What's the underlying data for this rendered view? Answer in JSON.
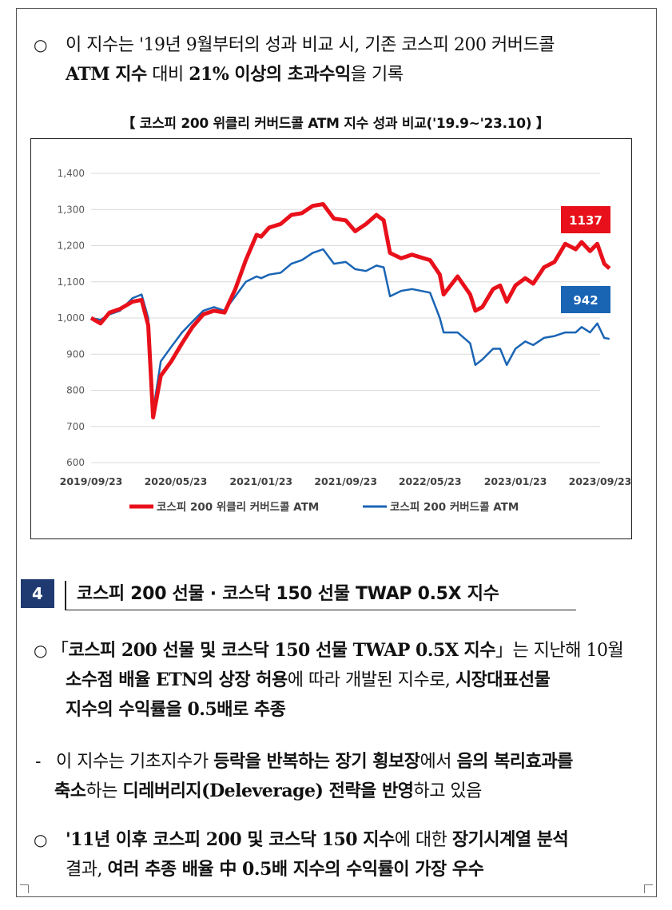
{
  "para1": {
    "bullet": "○",
    "line1": "이 지수는 '19년 9월부터의 성과 비교 시, 기존 코스피 200 커버드콜",
    "line2_bold": "ATM 지수",
    "line2_normal": " 대비 ",
    "line2_bold2": "21% 이상의 초과수익",
    "line2_end": "을 기록"
  },
  "chart_title": "【 코스피 200 위클리 커버드콜 ATM 지수 성과 비교('19.9~'23.10) 】",
  "chart_data": {
    "type": "line",
    "title": "",
    "xlabel": "",
    "ylabel": "",
    "ylim": [
      600,
      1400
    ],
    "yticks": [
      600,
      700,
      800,
      900,
      1000,
      1100,
      1200,
      1300,
      1400
    ],
    "ytick_labels": [
      "600",
      "700",
      "800",
      "900",
      "1,000",
      "1,100",
      "1,200",
      "1,300",
      "1,400"
    ],
    "x_tick_labels": [
      "2019/09/23",
      "2020/05/23",
      "2021/01/23",
      "2021/09/23",
      "2022/05/23",
      "2023/01/23",
      "2023/09/23"
    ],
    "x_ticks": [
      "2019-09-23",
      "2020-05-23",
      "2021-01-23",
      "2021-09-23",
      "2022-05-23",
      "2023-01-23",
      "2023-09-23"
    ],
    "grid": true,
    "legend_position": "bottom",
    "series": [
      {
        "name": "코스피 200 위클리 커버드콜 ATM",
        "color": "#e8101a",
        "end_label": "1137",
        "points": [
          [
            "2019-09-23",
            1000
          ],
          [
            "2019-10-20",
            985
          ],
          [
            "2019-11-15",
            1015
          ],
          [
            "2019-12-15",
            1025
          ],
          [
            "2020-01-20",
            1045
          ],
          [
            "2020-02-15",
            1050
          ],
          [
            "2020-03-05",
            980
          ],
          [
            "2020-03-19",
            725
          ],
          [
            "2020-04-10",
            840
          ],
          [
            "2020-05-10",
            880
          ],
          [
            "2020-06-10",
            930
          ],
          [
            "2020-07-10",
            975
          ],
          [
            "2020-08-10",
            1010
          ],
          [
            "2020-09-10",
            1020
          ],
          [
            "2020-10-10",
            1015
          ],
          [
            "2020-11-10",
            1080
          ],
          [
            "2020-12-10",
            1160
          ],
          [
            "2021-01-10",
            1230
          ],
          [
            "2021-01-23",
            1225
          ],
          [
            "2021-02-15",
            1250
          ],
          [
            "2021-03-20",
            1260
          ],
          [
            "2021-04-20",
            1285
          ],
          [
            "2021-05-20",
            1290
          ],
          [
            "2021-06-20",
            1310
          ],
          [
            "2021-07-20",
            1315
          ],
          [
            "2021-08-20",
            1275
          ],
          [
            "2021-09-23",
            1270
          ],
          [
            "2021-10-20",
            1240
          ],
          [
            "2021-11-20",
            1260
          ],
          [
            "2021-12-20",
            1285
          ],
          [
            "2022-01-10",
            1270
          ],
          [
            "2022-01-28",
            1180
          ],
          [
            "2022-03-01",
            1165
          ],
          [
            "2022-04-01",
            1175
          ],
          [
            "2022-05-23",
            1160
          ],
          [
            "2022-06-20",
            1120
          ],
          [
            "2022-07-01",
            1065
          ],
          [
            "2022-08-10",
            1115
          ],
          [
            "2022-09-15",
            1065
          ],
          [
            "2022-09-30",
            1020
          ],
          [
            "2022-10-20",
            1030
          ],
          [
            "2022-11-20",
            1080
          ],
          [
            "2022-12-10",
            1090
          ],
          [
            "2022-12-29",
            1045
          ],
          [
            "2023-01-23",
            1090
          ],
          [
            "2023-02-20",
            1110
          ],
          [
            "2023-03-15",
            1095
          ],
          [
            "2023-04-15",
            1140
          ],
          [
            "2023-05-15",
            1155
          ],
          [
            "2023-06-15",
            1205
          ],
          [
            "2023-07-15",
            1190
          ],
          [
            "2023-08-01",
            1210
          ],
          [
            "2023-08-25",
            1185
          ],
          [
            "2023-09-15",
            1205
          ],
          [
            "2023-10-05",
            1150
          ],
          [
            "2023-10-20",
            1137
          ]
        ]
      },
      {
        "name": "코스피 200 커버드콜 ATM",
        "color": "#1a64b4",
        "end_label": "942",
        "points": [
          [
            "2019-09-23",
            1000
          ],
          [
            "2019-10-20",
            995
          ],
          [
            "2019-11-15",
            1010
          ],
          [
            "2019-12-15",
            1020
          ],
          [
            "2020-01-20",
            1055
          ],
          [
            "2020-02-15",
            1065
          ],
          [
            "2020-03-05",
            1000
          ],
          [
            "2020-03-19",
            740
          ],
          [
            "2020-04-10",
            880
          ],
          [
            "2020-05-10",
            920
          ],
          [
            "2020-06-10",
            960
          ],
          [
            "2020-07-10",
            990
          ],
          [
            "2020-08-10",
            1020
          ],
          [
            "2020-09-10",
            1030
          ],
          [
            "2020-10-10",
            1020
          ],
          [
            "2020-11-10",
            1060
          ],
          [
            "2020-12-10",
            1100
          ],
          [
            "2021-01-10",
            1115
          ],
          [
            "2021-01-23",
            1110
          ],
          [
            "2021-02-15",
            1120
          ],
          [
            "2021-03-20",
            1125
          ],
          [
            "2021-04-20",
            1150
          ],
          [
            "2021-05-20",
            1160
          ],
          [
            "2021-06-20",
            1180
          ],
          [
            "2021-07-20",
            1190
          ],
          [
            "2021-08-20",
            1150
          ],
          [
            "2021-09-23",
            1155
          ],
          [
            "2021-10-20",
            1135
          ],
          [
            "2021-11-20",
            1130
          ],
          [
            "2021-12-20",
            1145
          ],
          [
            "2022-01-10",
            1140
          ],
          [
            "2022-01-28",
            1060
          ],
          [
            "2022-03-01",
            1075
          ],
          [
            "2022-04-01",
            1080
          ],
          [
            "2022-05-23",
            1070
          ],
          [
            "2022-06-20",
            1000
          ],
          [
            "2022-07-01",
            960
          ],
          [
            "2022-08-10",
            960
          ],
          [
            "2022-09-15",
            930
          ],
          [
            "2022-09-30",
            870
          ],
          [
            "2022-10-20",
            885
          ],
          [
            "2022-11-20",
            915
          ],
          [
            "2022-12-10",
            915
          ],
          [
            "2022-12-29",
            870
          ],
          [
            "2023-01-23",
            915
          ],
          [
            "2023-02-20",
            935
          ],
          [
            "2023-03-15",
            925
          ],
          [
            "2023-04-15",
            945
          ],
          [
            "2023-05-15",
            950
          ],
          [
            "2023-06-15",
            960
          ],
          [
            "2023-07-15",
            960
          ],
          [
            "2023-08-01",
            975
          ],
          [
            "2023-08-25",
            960
          ],
          [
            "2023-09-15",
            985
          ],
          [
            "2023-10-05",
            945
          ],
          [
            "2023-10-20",
            942
          ]
        ]
      }
    ]
  },
  "section": {
    "number": "4",
    "title": "코스피 200 선물 · 코스닥 150 선물 TWAP 0.5X 지수"
  },
  "para2": {
    "bullet": "○",
    "l1_a": "「",
    "l1_b": "코스피 200 선물 및 코스닥 150 선물 TWAP 0.5X 지수",
    "l1_c": "」는 지난해 10월",
    "l2_a": "소수점 배율 ETN의 상장 허용",
    "l2_b": "에 따라 개발된 지수로, ",
    "l2_c": "시장대표선물",
    "l3_a": "지수의 수익률을 0.5배로 추종"
  },
  "para3": {
    "dash": "-",
    "l1_a": "이 지수는 기초지수가 ",
    "l1_b": "등락을 반복하는 장기 횡보장",
    "l1_c": "에서 ",
    "l1_d": "음의 복리효과를",
    "l2_a": "축소",
    "l2_b": "하는 ",
    "l2_c": "디레버리지(Deleverage) 전략을 반영",
    "l2_d": "하고 있음"
  },
  "para4": {
    "bullet": "○",
    "l1_a": "'11년 이후 ",
    "l1_b": "코스피 200 및 코스닥 150 지수",
    "l1_c": "에 대한 ",
    "l1_d": "장기시계열 분석",
    "l2_a": "결과, ",
    "l2_b": "여러 추종 배율 中 0.5배 지수의 수익률이 가장 우수"
  }
}
